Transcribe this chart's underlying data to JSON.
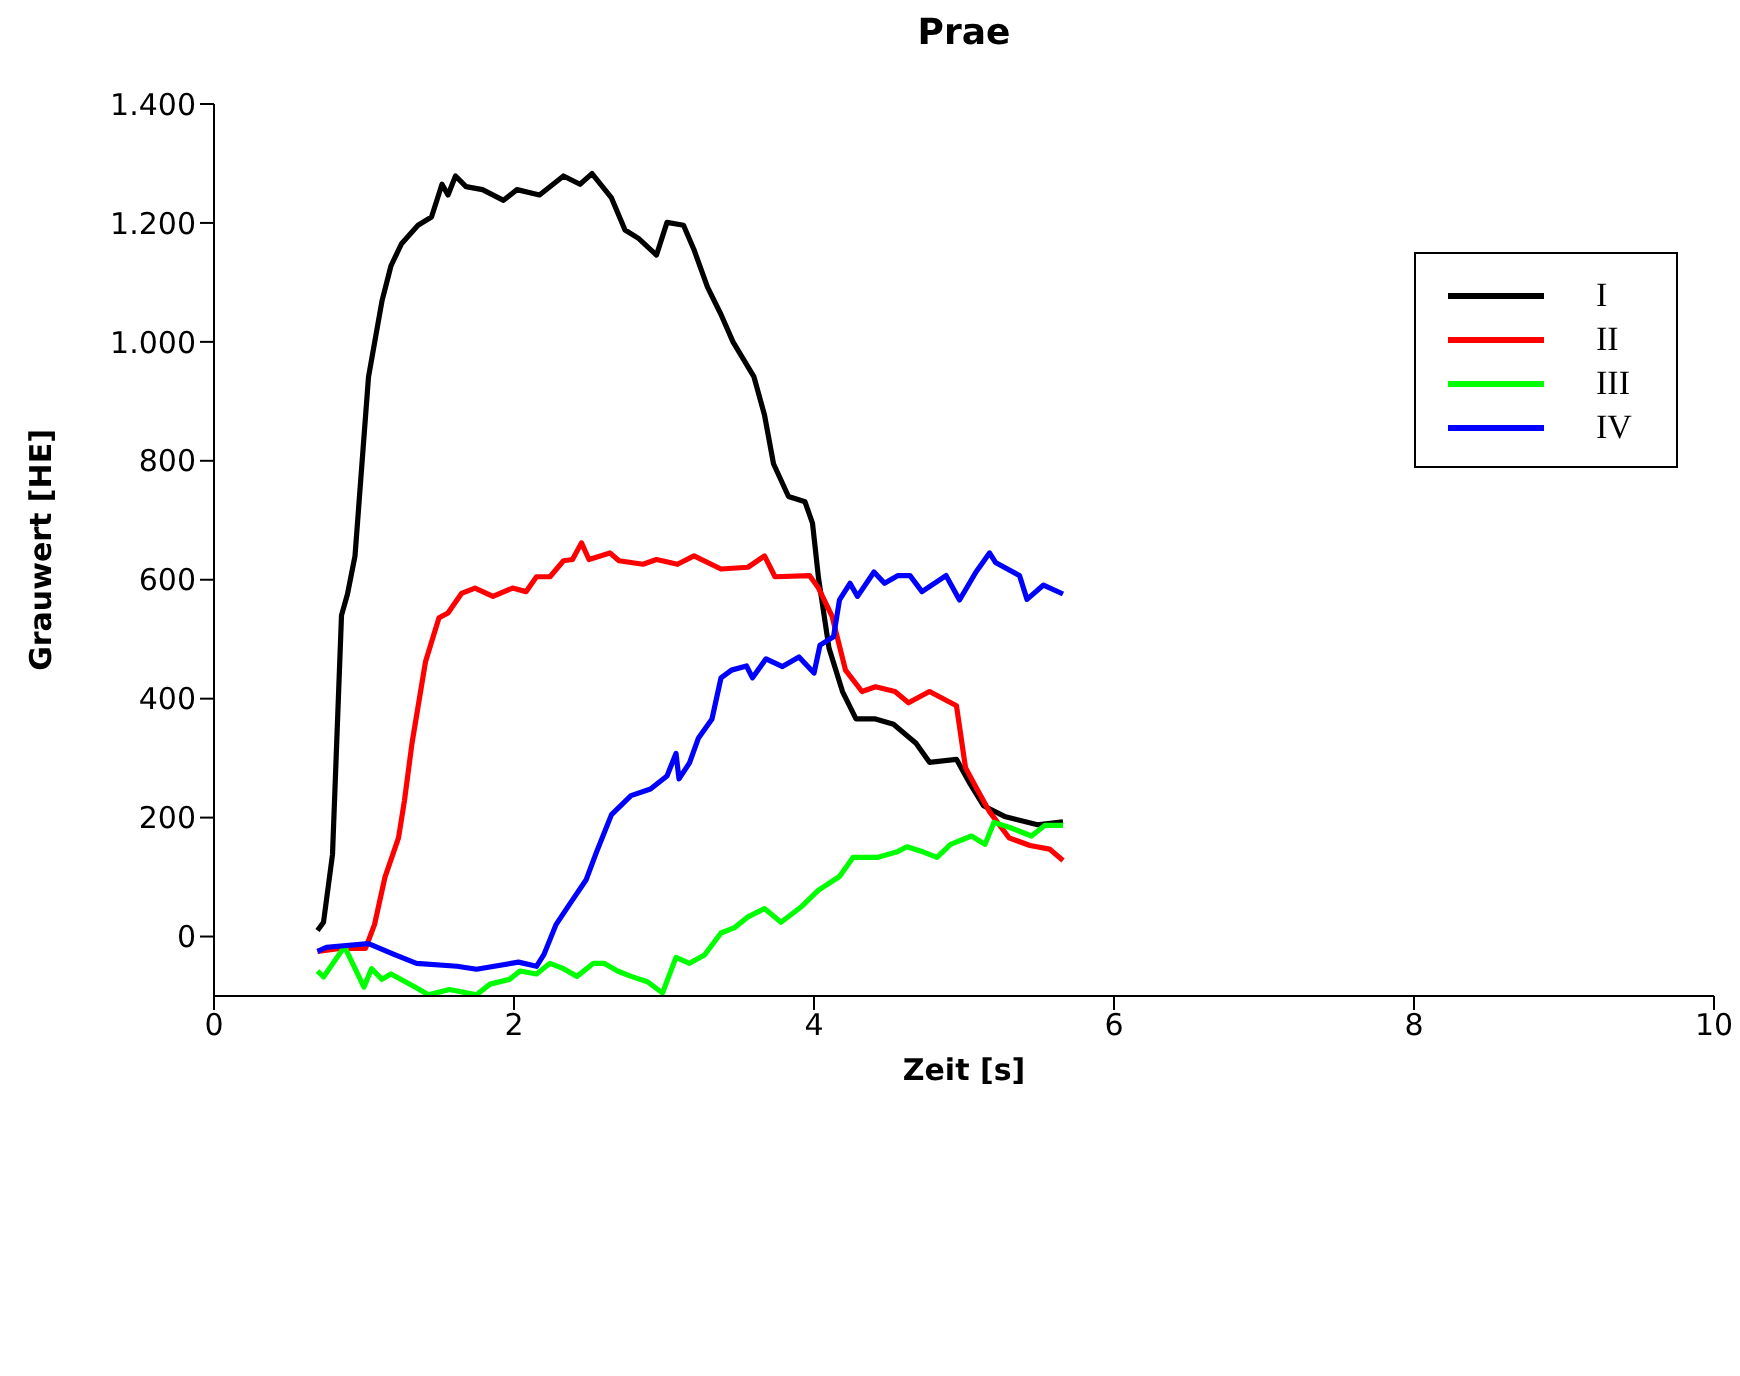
{
  "chart_data": {
    "type": "line",
    "title": "Prae",
    "xlabel": "Zeit [s]",
    "ylabel": "Grauwert [HE]",
    "xlim": [
      0,
      10
    ],
    "xticks": [
      0,
      2,
      4,
      6,
      8,
      10
    ],
    "ylim": [
      -100,
      1400
    ],
    "yticks": [
      {
        "value": 0,
        "label": "0"
      },
      {
        "value": 200,
        "label": "200"
      },
      {
        "value": 400,
        "label": "400"
      },
      {
        "value": 600,
        "label": "600"
      },
      {
        "value": 800,
        "label": "800"
      },
      {
        "value": 1000,
        "label": "1.000"
      },
      {
        "value": 1200,
        "label": "1.200"
      },
      {
        "value": 1400,
        "label": "1.400"
      }
    ],
    "grid": false,
    "legend": "top right",
    "marker": "none",
    "line_style": "solid",
    "series": [
      {
        "name": "I",
        "color": "#000000",
        "x": [
          0.69,
          0.73,
          0.79,
          0.85,
          0.89,
          0.94,
          1.03,
          1.12,
          1.18,
          1.25,
          1.36,
          1.45,
          1.52,
          1.56,
          1.61,
          1.68,
          1.79,
          1.93,
          2.02,
          2.17,
          2.33,
          2.44,
          2.52,
          2.65,
          2.74,
          2.83,
          2.95,
          3.02,
          3.13,
          3.2,
          3.29,
          3.38,
          3.46,
          3.6,
          3.67,
          3.73,
          3.83,
          3.94,
          3.99,
          4.03,
          4.1,
          4.19,
          4.28,
          4.41,
          4.53,
          4.68,
          4.77,
          4.95,
          5.04,
          5.13,
          5.27,
          5.49,
          5.66
        ],
        "values": [
          10,
          24,
          138,
          540,
          576,
          640,
          941,
          1069,
          1128,
          1165,
          1196,
          1210,
          1265,
          1247,
          1279,
          1261,
          1256,
          1238,
          1256,
          1247,
          1279,
          1265,
          1283,
          1242,
          1188,
          1174,
          1146,
          1201,
          1196,
          1155,
          1092,
          1046,
          1000,
          941,
          877,
          795,
          740,
          731,
          695,
          603,
          485,
          412,
          366,
          366,
          357,
          325,
          293,
          298,
          257,
          220,
          202,
          188,
          193
        ]
      },
      {
        "name": "II",
        "color": "#ff0000",
        "x": [
          0.69,
          0.84,
          1.01,
          1.07,
          1.14,
          1.23,
          1.27,
          1.32,
          1.41,
          1.5,
          1.56,
          1.65,
          1.74,
          1.86,
          1.99,
          2.08,
          2.15,
          2.24,
          2.33,
          2.39,
          2.45,
          2.5,
          2.64,
          2.7,
          2.86,
          2.95,
          3.09,
          3.2,
          3.38,
          3.56,
          3.67,
          3.74,
          3.97,
          4.03,
          4.12,
          4.21,
          4.32,
          4.41,
          4.54,
          4.63,
          4.77,
          4.95,
          5.01,
          5.08,
          5.17,
          5.3,
          5.44,
          5.57,
          5.66
        ],
        "values": [
          -25,
          -20,
          -20,
          20,
          100,
          166,
          229,
          325,
          462,
          536,
          544,
          577,
          586,
          572,
          586,
          580,
          605,
          605,
          632,
          634,
          662,
          634,
          645,
          632,
          626,
          634,
          626,
          640,
          618,
          621,
          640,
          605,
          607,
          586,
          539,
          448,
          412,
          420,
          412,
          393,
          412,
          388,
          284,
          251,
          210,
          166,
          153,
          147,
          128
        ]
      },
      {
        "name": "III",
        "color": "#00ff00",
        "x": [
          0.69,
          0.73,
          0.87,
          1.0,
          1.05,
          1.12,
          1.18,
          1.34,
          1.43,
          1.57,
          1.75,
          1.84,
          1.97,
          2.04,
          2.15,
          2.24,
          2.33,
          2.42,
          2.53,
          2.6,
          2.69,
          2.78,
          2.89,
          2.99,
          3.08,
          3.17,
          3.27,
          3.38,
          3.47,
          3.56,
          3.67,
          3.78,
          3.92,
          4.03,
          4.17,
          4.26,
          4.42,
          4.55,
          4.62,
          4.73,
          4.82,
          4.91,
          5.05,
          5.14,
          5.2,
          5.31,
          5.45,
          5.54,
          5.66
        ],
        "values": [
          -58,
          -68,
          -17,
          -85,
          -54,
          -72,
          -63,
          -85,
          -98,
          -89,
          -98,
          -80,
          -72,
          -58,
          -63,
          -45,
          -54,
          -67,
          -45,
          -45,
          -58,
          -67,
          -76,
          -95,
          -35,
          -45,
          -31,
          6,
          15,
          33,
          47,
          24,
          51,
          78,
          101,
          133,
          133,
          142,
          151,
          142,
          133,
          155,
          169,
          155,
          192,
          183,
          169,
          187,
          187
        ]
      },
      {
        "name": "IV",
        "color": "#0000ff",
        "x": [
          0.69,
          0.75,
          1.03,
          1.2,
          1.35,
          1.62,
          1.75,
          2.03,
          2.15,
          2.2,
          2.28,
          2.37,
          2.48,
          2.55,
          2.65,
          2.78,
          2.91,
          3.02,
          3.08,
          3.1,
          3.17,
          3.23,
          3.32,
          3.38,
          3.45,
          3.55,
          3.59,
          3.68,
          3.79,
          3.9,
          4.0,
          4.04,
          4.13,
          4.17,
          4.24,
          4.29,
          4.4,
          4.47,
          4.56,
          4.64,
          4.72,
          4.88,
          4.97,
          5.08,
          5.17,
          5.21,
          5.37,
          5.42,
          5.53,
          5.66
        ],
        "values": [
          -25,
          -18,
          -12,
          -30,
          -45,
          -50,
          -55,
          -43,
          -50,
          -30,
          20,
          54,
          95,
          142,
          205,
          237,
          248,
          270,
          308,
          265,
          292,
          334,
          366,
          435,
          448,
          455,
          435,
          467,
          454,
          470,
          443,
          490,
          504,
          566,
          594,
          572,
          613,
          594,
          607,
          607,
          580,
          607,
          566,
          613,
          645,
          629,
          607,
          567,
          591,
          576
        ]
      }
    ]
  }
}
